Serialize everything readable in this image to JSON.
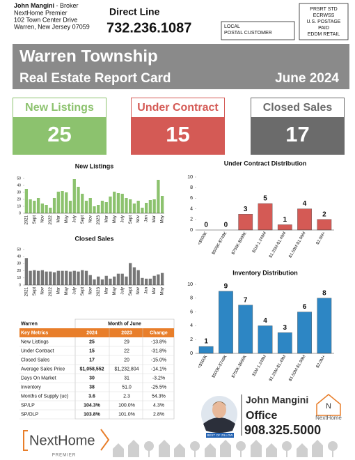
{
  "header": {
    "name": "John Mangini",
    "role": "- Broker",
    "company": "NextHome Premier",
    "address": "102 Town Center Drive",
    "city": "Warren, New Jersey 07059",
    "direct_label": "Direct Line",
    "direct_phone": "732.236.1087",
    "recipient": [
      "LOCAL",
      "POSTAL CUSTOMER"
    ],
    "postage": [
      "PRSRT STD",
      "ECRWSS",
      "U.S. POSTAGE",
      "PAID",
      "EDDM RETAIL"
    ]
  },
  "banner": {
    "title": "Warren Township",
    "subtitle": "Real Estate Report Card",
    "period": "June 2024"
  },
  "stats": [
    {
      "label": "New Listings",
      "value": 25,
      "color": "#8cc26e"
    },
    {
      "label": "Under Contract",
      "value": 15,
      "color": "#d45a55"
    },
    {
      "label": "Closed Sales",
      "value": 17,
      "color": "#6b6b6b"
    }
  ],
  "chart_data": [
    {
      "type": "bar",
      "title": "New Listings",
      "categories": [
        "2021",
        null,
        "Sept",
        null,
        "Nov",
        null,
        "2022",
        null,
        "Mar",
        null,
        "May",
        null,
        "July",
        null,
        "Sept",
        null,
        "Nov",
        null,
        "2023",
        null,
        "Mar",
        null,
        "May",
        null,
        "July",
        null,
        "Sept",
        null,
        "Nov",
        null,
        "Jan",
        null,
        "Mar",
        null,
        "May"
      ],
      "values": [
        35,
        20,
        18,
        22,
        14,
        12,
        8,
        22,
        31,
        32,
        30,
        18,
        49,
        38,
        28,
        18,
        22,
        10,
        12,
        18,
        16,
        24,
        31,
        29,
        28,
        22,
        20,
        14,
        18,
        8,
        15,
        19,
        20,
        48,
        25
      ],
      "color": "#8cc26e",
      "ylim": [
        0,
        50
      ],
      "yticks": [
        0,
        10,
        20,
        30,
        40,
        50
      ]
    },
    {
      "type": "bar",
      "title": "Closed Sales",
      "categories": [
        "2021",
        null,
        "Sept",
        null,
        "Nov",
        null,
        "2022",
        null,
        "Mar",
        null,
        "May",
        null,
        "July",
        null,
        "Sept",
        null,
        "Nov",
        null,
        "2023",
        null,
        "Mar",
        null,
        "May",
        null,
        "July",
        null,
        "Sept",
        null,
        "Nov",
        null,
        "Jan",
        null,
        "Mar",
        null,
        "May"
      ],
      "values": [
        38,
        20,
        21,
        20,
        21,
        19,
        19,
        18,
        20,
        20,
        20,
        19,
        20,
        19,
        21,
        20,
        14,
        8,
        12,
        8,
        13,
        9,
        12,
        16,
        16,
        12,
        31,
        25,
        21,
        10,
        9,
        9,
        13,
        15,
        17
      ],
      "color": "#777777",
      "ylim": [
        0,
        50
      ],
      "yticks": [
        0,
        10,
        20,
        30,
        40,
        50
      ]
    },
    {
      "type": "bar",
      "title": "Under Contract Distribution",
      "categories": [
        "<$500K",
        "$500K-$749K",
        "$750K-$999K",
        "$1M-1.249M",
        "$1.25M-$1.49M",
        "$1.50M-$1.99M",
        "$2.0M+"
      ],
      "values": [
        0,
        0,
        3,
        5,
        1,
        4,
        2
      ],
      "show_values": true,
      "color": "#d45a55",
      "ylim": [
        0,
        10
      ],
      "yticks": [
        0,
        2,
        4,
        6,
        8,
        10
      ]
    },
    {
      "type": "bar",
      "title": "Inventory Distribution",
      "categories": [
        "<$500K",
        "$500K-$749K",
        "$750K-$999K",
        "$1M-1.249M",
        "$1.25M-$1.49M",
        "$1.50M-$1.99M",
        "$2.0M+"
      ],
      "values": [
        1,
        9,
        7,
        4,
        3,
        6,
        8
      ],
      "show_values": true,
      "color": "#2d86c4",
      "ylim": [
        0,
        10
      ],
      "yticks": [
        0,
        2,
        4,
        6,
        8,
        10
      ]
    }
  ],
  "table": {
    "title": "Warren",
    "period": "Month of June",
    "columns": [
      "Key Metrics",
      "2024",
      "2023",
      "Change"
    ],
    "rows": [
      [
        "New Listings",
        "25",
        "29",
        "-13.8%"
      ],
      [
        "Under Contract",
        "15",
        "22",
        "-31.8%"
      ],
      [
        "Closed Sales",
        "17",
        "20",
        "-15.0%"
      ],
      [
        "Average Sales Price",
        "$1,058,552",
        "$1,232,804",
        "-14.1%"
      ],
      [
        "Days On Market",
        "30",
        "31",
        "-3.2%"
      ],
      [
        "Inventory",
        "38",
        "51.0",
        "-25.5%"
      ],
      [
        "Months of Supply (uc)",
        "3.6",
        "2.3",
        "54.3%"
      ],
      [
        "SP/LP",
        "104.3%",
        "100.0%",
        "4.3%"
      ],
      [
        "SP/OLP",
        "103.8%",
        "101.0%",
        "2.8%"
      ]
    ]
  },
  "agent": {
    "name": "John Mangini",
    "label": "Office",
    "phone": "908.325.5000",
    "badge": "BEST OF ZILLOW",
    "brand": "NextHome"
  },
  "footer": {
    "brand": "NextHome",
    "tagline": "PREMIER"
  }
}
